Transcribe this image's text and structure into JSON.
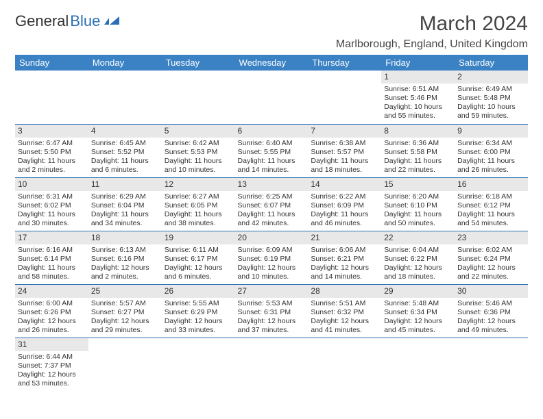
{
  "logo": {
    "text1": "General",
    "text2": "Blue",
    "icon_color": "#2a6fb5"
  },
  "title": "March 2024",
  "location": "Marlborough, England, United Kingdom",
  "header_bg": "#3b82c4",
  "header_fg": "#ffffff",
  "daynum_bg": "#e8e8e8",
  "border_color": "#2a6fb5",
  "weekdays": [
    "Sunday",
    "Monday",
    "Tuesday",
    "Wednesday",
    "Thursday",
    "Friday",
    "Saturday"
  ],
  "weeks": [
    [
      null,
      null,
      null,
      null,
      null,
      {
        "n": "1",
        "sr": "Sunrise: 6:51 AM",
        "ss": "Sunset: 5:46 PM",
        "dl": "Daylight: 10 hours and 55 minutes."
      },
      {
        "n": "2",
        "sr": "Sunrise: 6:49 AM",
        "ss": "Sunset: 5:48 PM",
        "dl": "Daylight: 10 hours and 59 minutes."
      }
    ],
    [
      {
        "n": "3",
        "sr": "Sunrise: 6:47 AM",
        "ss": "Sunset: 5:50 PM",
        "dl": "Daylight: 11 hours and 2 minutes."
      },
      {
        "n": "4",
        "sr": "Sunrise: 6:45 AM",
        "ss": "Sunset: 5:52 PM",
        "dl": "Daylight: 11 hours and 6 minutes."
      },
      {
        "n": "5",
        "sr": "Sunrise: 6:42 AM",
        "ss": "Sunset: 5:53 PM",
        "dl": "Daylight: 11 hours and 10 minutes."
      },
      {
        "n": "6",
        "sr": "Sunrise: 6:40 AM",
        "ss": "Sunset: 5:55 PM",
        "dl": "Daylight: 11 hours and 14 minutes."
      },
      {
        "n": "7",
        "sr": "Sunrise: 6:38 AM",
        "ss": "Sunset: 5:57 PM",
        "dl": "Daylight: 11 hours and 18 minutes."
      },
      {
        "n": "8",
        "sr": "Sunrise: 6:36 AM",
        "ss": "Sunset: 5:58 PM",
        "dl": "Daylight: 11 hours and 22 minutes."
      },
      {
        "n": "9",
        "sr": "Sunrise: 6:34 AM",
        "ss": "Sunset: 6:00 PM",
        "dl": "Daylight: 11 hours and 26 minutes."
      }
    ],
    [
      {
        "n": "10",
        "sr": "Sunrise: 6:31 AM",
        "ss": "Sunset: 6:02 PM",
        "dl": "Daylight: 11 hours and 30 minutes."
      },
      {
        "n": "11",
        "sr": "Sunrise: 6:29 AM",
        "ss": "Sunset: 6:04 PM",
        "dl": "Daylight: 11 hours and 34 minutes."
      },
      {
        "n": "12",
        "sr": "Sunrise: 6:27 AM",
        "ss": "Sunset: 6:05 PM",
        "dl": "Daylight: 11 hours and 38 minutes."
      },
      {
        "n": "13",
        "sr": "Sunrise: 6:25 AM",
        "ss": "Sunset: 6:07 PM",
        "dl": "Daylight: 11 hours and 42 minutes."
      },
      {
        "n": "14",
        "sr": "Sunrise: 6:22 AM",
        "ss": "Sunset: 6:09 PM",
        "dl": "Daylight: 11 hours and 46 minutes."
      },
      {
        "n": "15",
        "sr": "Sunrise: 6:20 AM",
        "ss": "Sunset: 6:10 PM",
        "dl": "Daylight: 11 hours and 50 minutes."
      },
      {
        "n": "16",
        "sr": "Sunrise: 6:18 AM",
        "ss": "Sunset: 6:12 PM",
        "dl": "Daylight: 11 hours and 54 minutes."
      }
    ],
    [
      {
        "n": "17",
        "sr": "Sunrise: 6:16 AM",
        "ss": "Sunset: 6:14 PM",
        "dl": "Daylight: 11 hours and 58 minutes."
      },
      {
        "n": "18",
        "sr": "Sunrise: 6:13 AM",
        "ss": "Sunset: 6:16 PM",
        "dl": "Daylight: 12 hours and 2 minutes."
      },
      {
        "n": "19",
        "sr": "Sunrise: 6:11 AM",
        "ss": "Sunset: 6:17 PM",
        "dl": "Daylight: 12 hours and 6 minutes."
      },
      {
        "n": "20",
        "sr": "Sunrise: 6:09 AM",
        "ss": "Sunset: 6:19 PM",
        "dl": "Daylight: 12 hours and 10 minutes."
      },
      {
        "n": "21",
        "sr": "Sunrise: 6:06 AM",
        "ss": "Sunset: 6:21 PM",
        "dl": "Daylight: 12 hours and 14 minutes."
      },
      {
        "n": "22",
        "sr": "Sunrise: 6:04 AM",
        "ss": "Sunset: 6:22 PM",
        "dl": "Daylight: 12 hours and 18 minutes."
      },
      {
        "n": "23",
        "sr": "Sunrise: 6:02 AM",
        "ss": "Sunset: 6:24 PM",
        "dl": "Daylight: 12 hours and 22 minutes."
      }
    ],
    [
      {
        "n": "24",
        "sr": "Sunrise: 6:00 AM",
        "ss": "Sunset: 6:26 PM",
        "dl": "Daylight: 12 hours and 26 minutes."
      },
      {
        "n": "25",
        "sr": "Sunrise: 5:57 AM",
        "ss": "Sunset: 6:27 PM",
        "dl": "Daylight: 12 hours and 29 minutes."
      },
      {
        "n": "26",
        "sr": "Sunrise: 5:55 AM",
        "ss": "Sunset: 6:29 PM",
        "dl": "Daylight: 12 hours and 33 minutes."
      },
      {
        "n": "27",
        "sr": "Sunrise: 5:53 AM",
        "ss": "Sunset: 6:31 PM",
        "dl": "Daylight: 12 hours and 37 minutes."
      },
      {
        "n": "28",
        "sr": "Sunrise: 5:51 AM",
        "ss": "Sunset: 6:32 PM",
        "dl": "Daylight: 12 hours and 41 minutes."
      },
      {
        "n": "29",
        "sr": "Sunrise: 5:48 AM",
        "ss": "Sunset: 6:34 PM",
        "dl": "Daylight: 12 hours and 45 minutes."
      },
      {
        "n": "30",
        "sr": "Sunrise: 5:46 AM",
        "ss": "Sunset: 6:36 PM",
        "dl": "Daylight: 12 hours and 49 minutes."
      }
    ],
    [
      {
        "n": "31",
        "sr": "Sunrise: 6:44 AM",
        "ss": "Sunset: 7:37 PM",
        "dl": "Daylight: 12 hours and 53 minutes."
      },
      null,
      null,
      null,
      null,
      null,
      null
    ]
  ]
}
